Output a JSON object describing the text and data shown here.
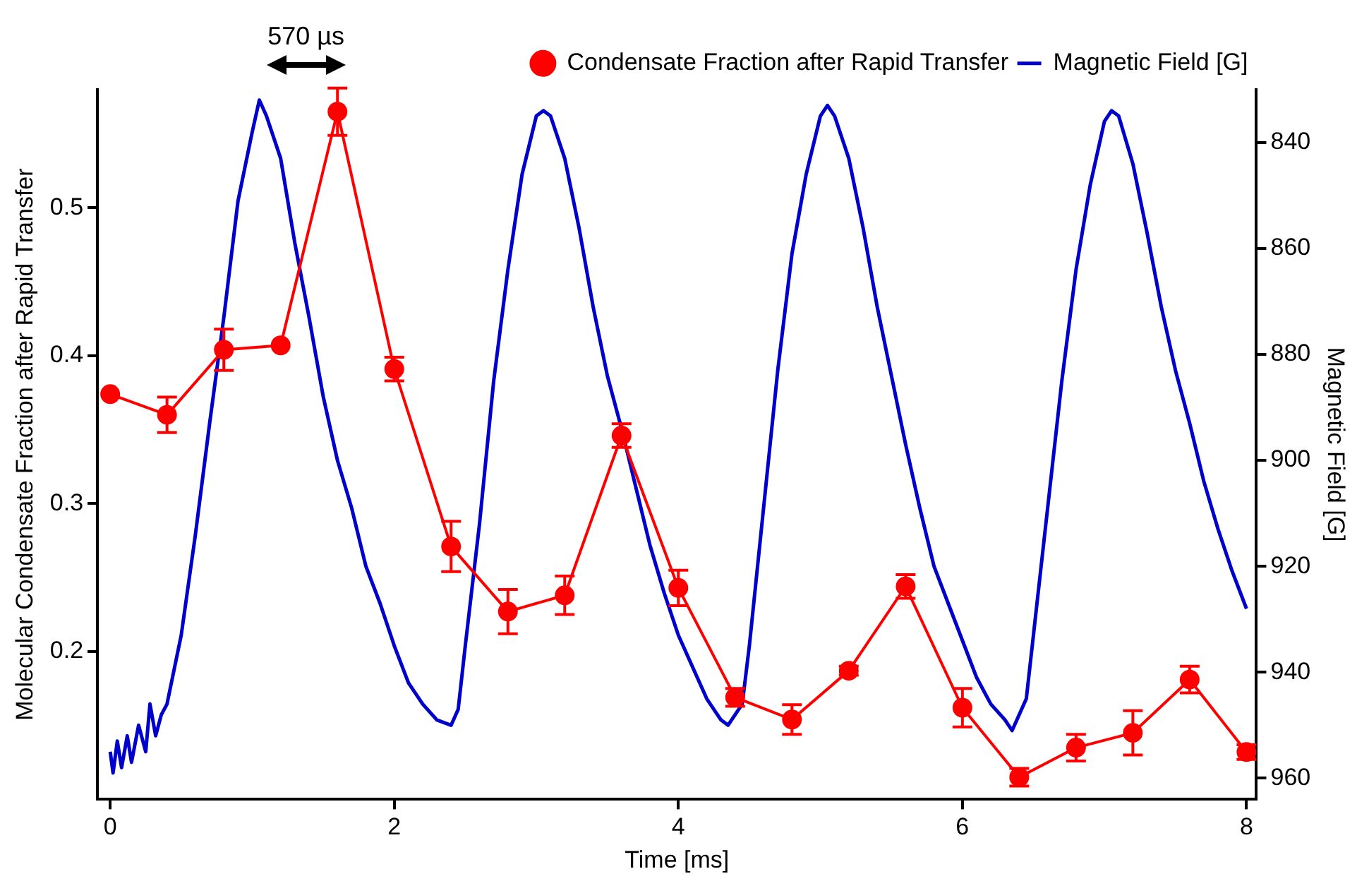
{
  "chart_data": {
    "type": "line",
    "xlabel": "Time [ms]",
    "ylabel": "Molecular Condensate Fraction after Rapid Transfer",
    "y2label": "Magnetic Field [G]",
    "annotations": [
      "570 µs"
    ],
    "xlim": [
      -0.09,
      8.07
    ],
    "xticks": [
      0,
      2,
      4,
      6,
      8
    ],
    "ylim": [
      0.1,
      0.58
    ],
    "yticks": [
      0.2,
      0.3,
      0.4,
      0.5
    ],
    "y2lim": [
      964,
      830
    ],
    "y2ticks": [
      840,
      860,
      880,
      900,
      920,
      940,
      960
    ],
    "grid": false,
    "legend": "top right",
    "series": [
      {
        "name": "Condensate Fraction after Rapid Transfer",
        "color": "#ff0000",
        "marker": "circle",
        "x": [
          0,
          0.4,
          0.8,
          1.2,
          1.6,
          2.0,
          2.4,
          2.8,
          3.2,
          3.6,
          4.0,
          4.4,
          4.8,
          5.2,
          5.6,
          6.0,
          6.4,
          6.8,
          7.2,
          7.6,
          8.0
        ],
        "values": [
          0.374,
          0.36,
          0.404,
          0.407,
          0.565,
          0.391,
          0.271,
          0.227,
          0.238,
          0.346,
          0.243,
          0.169,
          0.154,
          0.187,
          0.244,
          0.162,
          0.115,
          0.135,
          0.145,
          0.181,
          0.132
        ],
        "errors": [
          null,
          0.012,
          0.014,
          null,
          0.016,
          0.008,
          0.017,
          0.015,
          0.013,
          0.008,
          0.012,
          0.006,
          0.01,
          0.003,
          0.008,
          0.013,
          0.006,
          0.009,
          0.015,
          0.009,
          0.005
        ]
      },
      {
        "name": "Magnetic Field [G]",
        "color": "#0000cc",
        "marker": "none",
        "axis": "y2",
        "x": [
          0,
          0.02,
          0.05,
          0.08,
          0.12,
          0.15,
          0.2,
          0.25,
          0.28,
          0.32,
          0.36,
          0.4,
          0.5,
          0.6,
          0.7,
          0.8,
          0.9,
          1.0,
          1.05,
          1.1,
          1.2,
          1.3,
          1.4,
          1.5,
          1.6,
          1.7,
          1.8,
          1.9,
          2.0,
          2.1,
          2.2,
          2.3,
          2.4,
          2.45,
          2.5,
          2.6,
          2.7,
          2.8,
          2.9,
          3.0,
          3.05,
          3.1,
          3.2,
          3.3,
          3.4,
          3.5,
          3.6,
          3.7,
          3.8,
          3.9,
          4.0,
          4.1,
          4.2,
          4.3,
          4.35,
          4.45,
          4.5,
          4.6,
          4.7,
          4.8,
          4.9,
          5.0,
          5.05,
          5.1,
          5.2,
          5.3,
          5.4,
          5.5,
          5.6,
          5.7,
          5.8,
          5.9,
          6.0,
          6.1,
          6.2,
          6.3,
          6.35,
          6.45,
          6.5,
          6.6,
          6.7,
          6.8,
          6.9,
          7.0,
          7.05,
          7.1,
          7.2,
          7.3,
          7.4,
          7.5,
          7.6,
          7.7,
          7.8,
          7.9,
          8.0
        ],
        "values": [
          955,
          959,
          953,
          958,
          952,
          957,
          950,
          955,
          946,
          952,
          948,
          946,
          933,
          914,
          893,
          873,
          851,
          838,
          832,
          835,
          843,
          859,
          873,
          888,
          900,
          909,
          920,
          927,
          935,
          942,
          946,
          949,
          950,
          947,
          935,
          912,
          885,
          864,
          846,
          835,
          834,
          835,
          843,
          856,
          871,
          884,
          894,
          905,
          916,
          925,
          933,
          939,
          945,
          949,
          950,
          946,
          935,
          909,
          883,
          861,
          846,
          835,
          833,
          835,
          843,
          856,
          871,
          884,
          897,
          909,
          920,
          927,
          934,
          941,
          946,
          949,
          951,
          945,
          933,
          909,
          885,
          864,
          848,
          836,
          834,
          835,
          844,
          857,
          871,
          883,
          893,
          904,
          913,
          921,
          928
        ]
      }
    ]
  }
}
